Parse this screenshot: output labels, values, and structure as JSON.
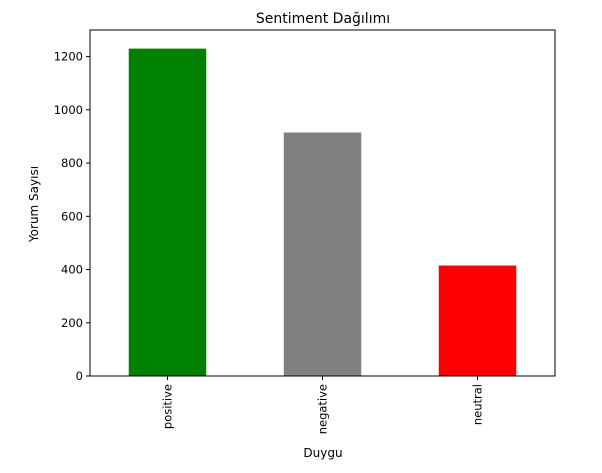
{
  "chart_data": {
    "type": "bar",
    "title": "Sentiment Dağılımı",
    "xlabel": "Duygu",
    "ylabel": "Yorum Sayısı",
    "categories": [
      "positive",
      "negative",
      "neutral"
    ],
    "values": [
      1230,
      915,
      415
    ],
    "colors": [
      "#008000",
      "#808080",
      "#ff0000"
    ],
    "ylim": [
      0,
      1300
    ],
    "yticks": [
      0,
      200,
      400,
      600,
      800,
      1000,
      1200
    ],
    "grid": false,
    "legend": "none"
  }
}
